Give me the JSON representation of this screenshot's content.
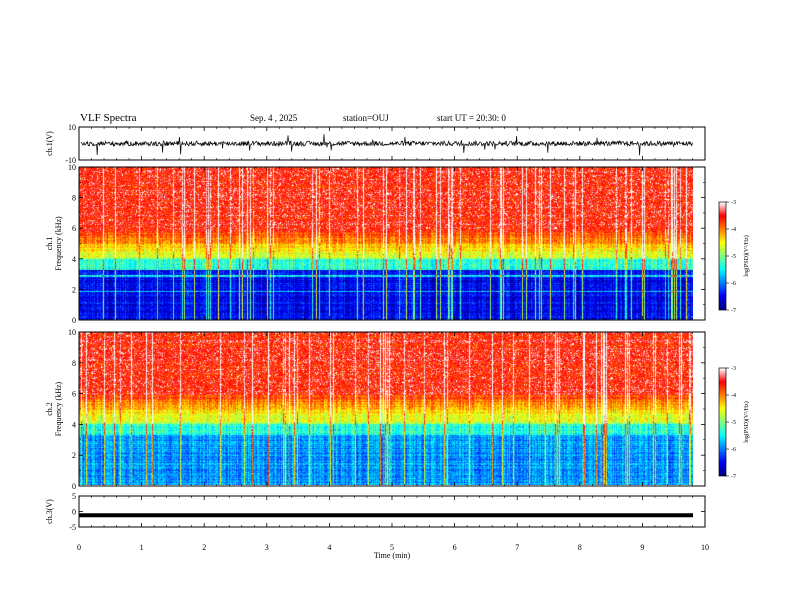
{
  "header": {
    "title": "VLF Spectra",
    "date": "Sep. 4 , 2025",
    "station": "station=OUJ",
    "start": "start UT = 20:30: 0"
  },
  "chart_data": [
    {
      "type": "line",
      "name": "ch1-waveform",
      "ylabel": "ch.1(V)",
      "ylim": [
        -10,
        10
      ],
      "yticks": [
        "10",
        "-10"
      ],
      "xlim": [
        0,
        10
      ],
      "baseline": 0,
      "noise_amplitude": 1.5
    },
    {
      "type": "heatmap",
      "name": "ch1-spectrogram",
      "ylabel": "ch.1",
      "ylabel2": "Frequency (kHz)",
      "ylim": [
        0,
        10
      ],
      "yticks": [
        "0",
        "2",
        "4",
        "6",
        "8",
        "10"
      ],
      "xlim": [
        0,
        9.8
      ],
      "colorbar": {
        "label": "log(PSD)(V²/Hz)",
        "range": [
          -7,
          -3
        ],
        "ticks": [
          "-3",
          "-4",
          "-5",
          "-6",
          "-7"
        ]
      }
    },
    {
      "type": "heatmap",
      "name": "ch2-spectrogram",
      "ylabel": "ch.2",
      "ylabel2": "Frequency (kHz)",
      "ylim": [
        0,
        10
      ],
      "yticks": [
        "0",
        "2",
        "4",
        "6",
        "8",
        "10"
      ],
      "xlim": [
        0,
        9.8
      ],
      "colorbar": {
        "label": "log(PSD)(V²/Hz)",
        "range": [
          -7,
          -3
        ],
        "ticks": [
          "-3",
          "-4",
          "-5",
          "-6",
          "-7"
        ]
      }
    },
    {
      "type": "line",
      "name": "ch3-waveform",
      "ylabel": "ch.3(V)",
      "ylim": [
        -5,
        5
      ],
      "yticks": [
        "5",
        "0",
        "-5"
      ],
      "xlim": [
        0,
        10
      ],
      "baseline": -1.2,
      "noise_amplitude": 0
    }
  ],
  "xaxis": {
    "label": "Time (min)",
    "range": [
      0,
      10
    ],
    "ticks": [
      "0",
      "1",
      "2",
      "3",
      "4",
      "5",
      "6",
      "7",
      "8",
      "9",
      "10"
    ]
  },
  "colors": {
    "colormap": [
      "#00007f",
      "#0000ff",
      "#007fff",
      "#00ffff",
      "#7fff7f",
      "#ffff00",
      "#ff7f00",
      "#ff0000",
      "#ffffff"
    ]
  }
}
